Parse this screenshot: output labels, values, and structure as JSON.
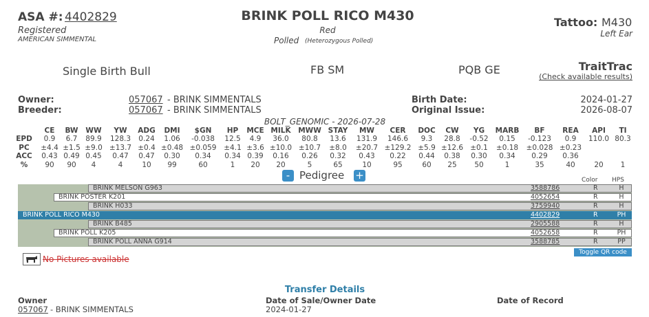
{
  "header": {
    "asa_label": "ASA #:",
    "asa_number": "4402829",
    "registered": "Registered",
    "breed": "AMERICAN SIMMENTAL",
    "name": "BRINK POLL RICO M430",
    "color": "Red",
    "polled": "Polled",
    "polled_note": "(Heterozygous Polled)",
    "tattoo_label": "Tattoo:",
    "tattoo": "M430",
    "tattoo_location": "Left Ear"
  },
  "info": {
    "birth_type": "Single Birth Bull",
    "fb": "FB SM",
    "pqb": "PQB GE",
    "traittrac": "TraitTrac",
    "traittrac_link": "(Check available results)"
  },
  "details": {
    "owner_label": "Owner:",
    "owner_id": "057067",
    "owner_name": "- BRINK SIMMENTALS",
    "breeder_label": "Breeder:",
    "breeder_id": "057067",
    "breeder_name": "- BRINK SIMMENTALS",
    "birth_date_label": "Birth Date:",
    "birth_date": "2024-01-27",
    "original_issue_label": "Original Issue:",
    "original_issue": "2026-08-07"
  },
  "epd": {
    "title": "BOLT_GENOMIC - 2026-07-28",
    "columns": [
      "CE",
      "BW",
      "WW",
      "YW",
      "ADG",
      "DMI",
      "$GN",
      "HP",
      "MCE",
      "MILK",
      "MWW",
      "STAY",
      "MW",
      "CER",
      "DOC",
      "CW",
      "YG",
      "MARB",
      "BF",
      "REA",
      "API",
      "TI"
    ],
    "rows": [
      {
        "label": "EPD",
        "values": [
          "0.9",
          "6.7",
          "89.9",
          "128.3",
          "0.24",
          "1.06",
          "-0.038",
          "12.5",
          "4.9",
          "36.0",
          "80.8",
          "13.6",
          "131.9",
          "146.6",
          "9.3",
          "28.8",
          "-0.52",
          "0.15",
          "-0.123",
          "0.9",
          "110.0",
          "80.3"
        ]
      },
      {
        "label": "PC",
        "values": [
          "±4.4",
          "±1.5",
          "±9.0",
          "±13.7",
          "±0.4",
          "±0.48",
          "±0.059",
          "±4.1",
          "±3.6",
          "±10.0",
          "±10.7",
          "±8.0",
          "±20.7",
          "±129.2",
          "±5.9",
          "±12.6",
          "±0.1",
          "±0.18",
          "±0.028",
          "±0.23",
          null,
          null
        ]
      },
      {
        "label": "ACC",
        "values": [
          "0.43",
          "0.49",
          "0.45",
          "0.47",
          "0.47",
          "0.30",
          "0.34",
          "0.34",
          "0.39",
          "0.16",
          "0.26",
          "0.32",
          "0.43",
          "0.22",
          "0.44",
          "0.38",
          "0.30",
          "0.34",
          "0.29",
          "0.36",
          null,
          null
        ]
      },
      {
        "label": "%",
        "values": [
          "90",
          "90",
          "4",
          "4",
          "10",
          "99",
          "60",
          "1",
          "20",
          "20",
          "5",
          "65",
          "10",
          "95",
          "60",
          "25",
          "50",
          "1",
          "35",
          "40",
          "20",
          "1"
        ]
      }
    ]
  },
  "pedigree": {
    "minus": "-",
    "title": "Pedigree",
    "plus": "+",
    "color_header": "Color",
    "hps_header": "HPS",
    "rows": [
      {
        "name": "BRINK MELSON G963",
        "number": "3588786",
        "color": "R",
        "hps": "H",
        "level": 2
      },
      {
        "name": "BRINK POSTER K201",
        "number": "4052654",
        "color": "R",
        "hps": "H",
        "level": 1
      },
      {
        "name": "BRINK H033",
        "number": "3759940",
        "color": "R",
        "hps": "H",
        "level": 2
      },
      {
        "name": "BRINK POLL RICO M430",
        "number": "4402829",
        "color": "R",
        "hps": "PH",
        "level": 0
      },
      {
        "name": "BRINK B485",
        "number": "2905588",
        "color": "R",
        "hps": "H",
        "level": 2
      },
      {
        "name": "BRINK POLL K205",
        "number": "4052658",
        "color": "R",
        "hps": "PH",
        "level": 1
      },
      {
        "name": "BRINK POLL ANNA G914",
        "number": "3588785",
        "color": "R",
        "hps": "PP",
        "level": 2
      }
    ]
  },
  "pictures": {
    "none": "No Pictures available",
    "qr": "Toggle QR code"
  },
  "transfer": {
    "title": "Transfer Details",
    "owner_header": "Owner",
    "date_header": "Date of Sale/Owner Date",
    "record_header": "Date of Record",
    "owner_id": "057067",
    "owner_name": "- BRINK SIMMENTALS",
    "date": "2024-01-27"
  }
}
